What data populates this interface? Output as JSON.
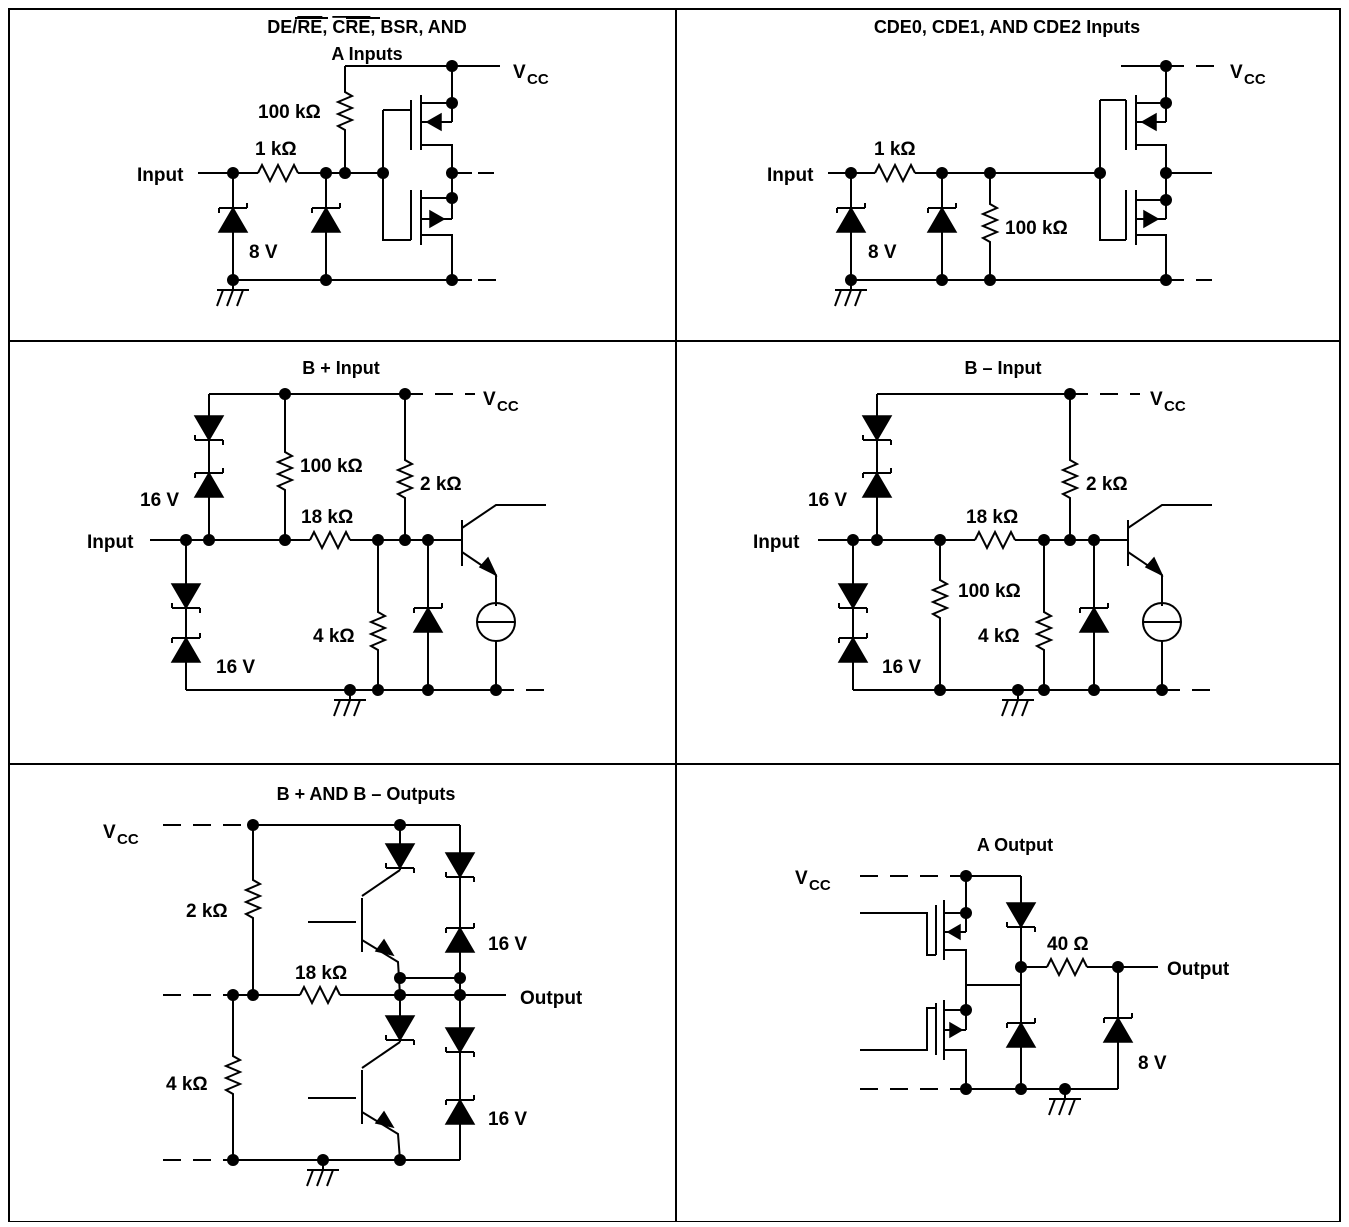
{
  "panels": [
    {
      "id": "p1",
      "title_line1_parts": [
        "DE/",
        "RE",
        ", ",
        "CRE",
        ", BSR, AND"
      ],
      "title_line2": "A Inputs",
      "labels": {
        "input": "Input",
        "r_top": "100 kΩ",
        "r_series": "1 kΩ",
        "zener": "8 V",
        "vcc_main": "V",
        "vcc_sub": "CC"
      }
    },
    {
      "id": "p2",
      "title": "CDE0, CDE1, AND CDE2 Inputs",
      "labels": {
        "input": "Input",
        "r_series": "1 kΩ",
        "r_shunt": "100 kΩ",
        "zener": "8 V",
        "vcc_main": "V",
        "vcc_sub": "CC"
      }
    },
    {
      "id": "p3",
      "title": "B + Input",
      "labels": {
        "input": "Input",
        "r_top": "100 kΩ",
        "r_series": "18 kΩ",
        "r_pull": "2 kΩ",
        "r_bottom": "4 kΩ",
        "zener_top": "16 V",
        "zener_bottom": "16 V",
        "vcc_main": "V",
        "vcc_sub": "CC"
      }
    },
    {
      "id": "p4",
      "title": "B – Input",
      "labels": {
        "input": "Input",
        "r_mid": "100 kΩ",
        "r_series": "18 kΩ",
        "r_pull": "2 kΩ",
        "r_bottom": "4 kΩ",
        "zener_top": "16 V",
        "zener_bottom": "16 V",
        "vcc_main": "V",
        "vcc_sub": "CC"
      }
    },
    {
      "id": "p5",
      "title": "B + AND B – Outputs",
      "labels": {
        "output": "Output",
        "r_top": "2 kΩ",
        "r_series": "18 kΩ",
        "r_bottom": "4 kΩ",
        "zener_top": "16 V",
        "zener_bottom": "16 V",
        "vcc_main": "V",
        "vcc_sub": "CC"
      }
    },
    {
      "id": "p6",
      "title": "A Output",
      "labels": {
        "output": "Output",
        "r_series": "40 Ω",
        "zener": "8 V",
        "vcc_main": "V",
        "vcc_sub": "CC"
      }
    }
  ]
}
